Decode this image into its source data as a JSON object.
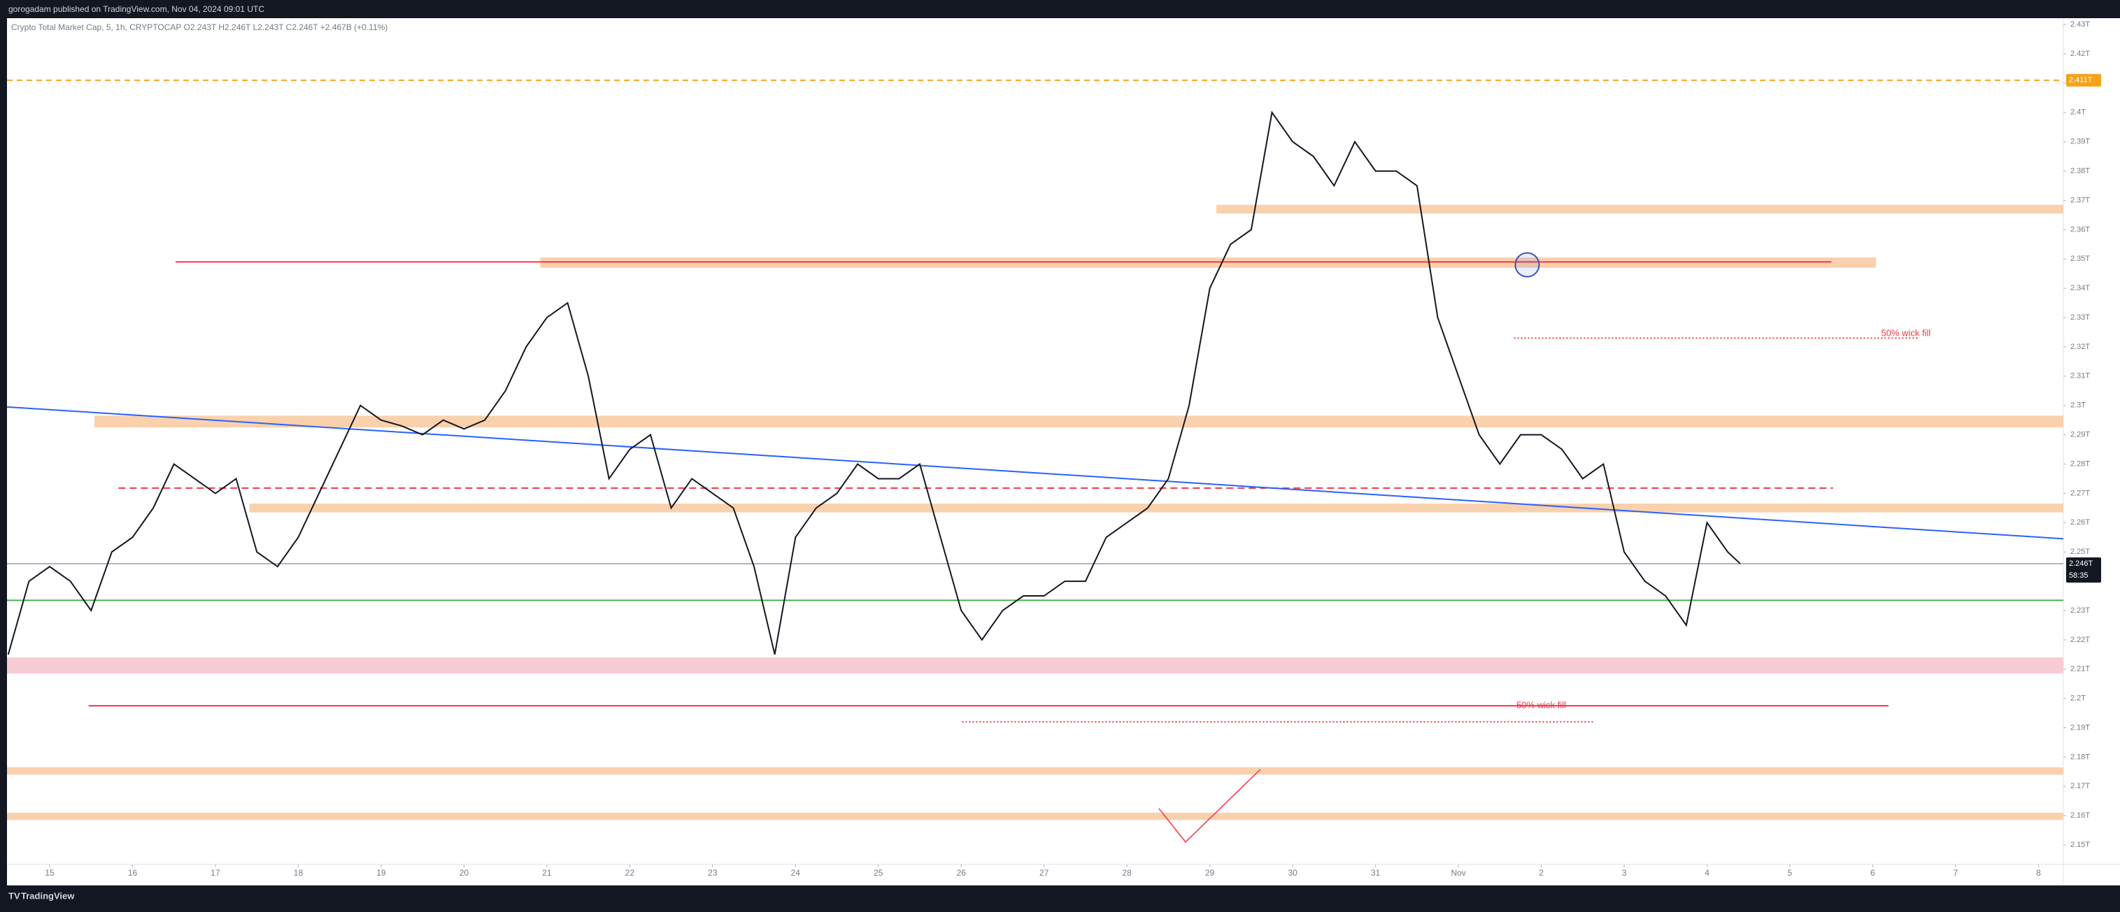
{
  "chart_data": {
    "type": "line",
    "publisher": "gorogadam published on TradingView.com, Nov 04, 2024 09:01 UTC",
    "legend_text": "Crypto Total Market Cap, 5, 1h, CRYPTOCAP  O2.243T  H2.246T  L2.243T  C2.246T  +2.467B (+0.11%)",
    "footer": "TradingView",
    "xlim": [
      14.485,
      39.3
    ],
    "ylim": [
      2.1443,
      2.4317
    ],
    "xticks": [
      15,
      16,
      17,
      18,
      19,
      20,
      21,
      22,
      23,
      24,
      25,
      26,
      27,
      28,
      29,
      30,
      31,
      {
        "value": 32,
        "label": "Nov"
      },
      {
        "value": 33,
        "label": "2"
      },
      {
        "value": 34,
        "label": "3"
      },
      {
        "value": 35,
        "label": "4"
      },
      {
        "value": 36,
        "label": "5"
      },
      {
        "value": 37,
        "label": "6"
      },
      {
        "value": 38,
        "label": "7"
      },
      {
        "value": 39,
        "label": "8"
      }
    ],
    "yticks": [
      {
        "value": 2.15,
        "label": "2.15T"
      },
      {
        "value": 2.16,
        "label": "2.16T"
      },
      {
        "value": 2.17,
        "label": "2.17T"
      },
      {
        "value": 2.18,
        "label": "2.18T"
      },
      {
        "value": 2.19,
        "label": "2.19T"
      },
      {
        "value": 2.2,
        "label": "2.2T"
      },
      {
        "value": 2.21,
        "label": "2.21T"
      },
      {
        "value": 2.22,
        "label": "2.22T"
      },
      {
        "value": 2.23,
        "label": "2.23T"
      },
      {
        "value": 2.25,
        "label": "2.25T"
      },
      {
        "value": 2.26,
        "label": "2.26T"
      },
      {
        "value": 2.27,
        "label": "2.27T"
      },
      {
        "value": 2.28,
        "label": "2.28T"
      },
      {
        "value": 2.29,
        "label": "2.29T"
      },
      {
        "value": 2.3,
        "label": "2.3T"
      },
      {
        "value": 2.31,
        "label": "2.31T"
      },
      {
        "value": 2.32,
        "label": "2.32T"
      },
      {
        "value": 2.33,
        "label": "2.33T"
      },
      {
        "value": 2.34,
        "label": "2.34T"
      },
      {
        "value": 2.35,
        "label": "2.35T"
      },
      {
        "value": 2.36,
        "label": "2.36T"
      },
      {
        "value": 2.37,
        "label": "2.37T"
      },
      {
        "value": 2.38,
        "label": "2.38T"
      },
      {
        "value": 2.39,
        "label": "2.39T"
      },
      {
        "value": 2.4,
        "label": "2.4T"
      },
      {
        "value": 2.41,
        "label": "2.41T"
      },
      {
        "value": 2.42,
        "label": "2.42T"
      },
      {
        "value": 2.43,
        "label": "2.43T"
      }
    ],
    "series": [
      {
        "color": "#131722",
        "x": [
          14.5,
          14.75,
          15,
          15.25,
          15.5,
          15.75,
          16,
          16.25,
          16.5,
          16.75,
          17,
          17.25,
          17.5,
          17.75,
          18,
          18.25,
          18.5,
          18.75,
          19,
          19.25,
          19.5,
          19.75,
          20,
          20.25,
          20.5,
          20.75,
          21,
          21.25,
          21.5,
          21.75,
          22,
          22.25,
          22.5,
          22.75,
          23,
          23.25,
          23.5,
          23.75,
          24,
          24.25,
          24.5,
          24.75,
          25,
          25.25,
          25.5,
          25.75,
          26,
          26.25,
          26.5,
          26.75,
          27,
          27.25,
          27.5,
          27.75,
          28,
          28.25,
          28.5,
          28.75,
          29,
          29.25,
          29.5,
          29.75,
          30,
          30.25,
          30.5,
          30.75,
          31,
          31.25,
          31.5,
          31.75,
          32,
          32.25,
          32.5,
          32.75,
          33,
          33.25,
          33.5,
          33.75,
          34,
          34.25,
          34.5,
          34.75,
          35,
          35.25,
          35.4
        ],
        "values": [
          2.215,
          2.24,
          2.245,
          2.24,
          2.23,
          2.25,
          2.255,
          2.265,
          2.28,
          2.275,
          2.27,
          2.275,
          2.25,
          2.245,
          2.255,
          2.27,
          2.285,
          2.3,
          2.295,
          2.293,
          2.29,
          2.295,
          2.292,
          2.295,
          2.305,
          2.32,
          2.33,
          2.335,
          2.31,
          2.275,
          2.285,
          2.29,
          2.265,
          2.275,
          2.27,
          2.265,
          2.245,
          2.215,
          2.255,
          2.265,
          2.27,
          2.28,
          2.275,
          2.275,
          2.28,
          2.255,
          2.23,
          2.22,
          2.23,
          2.235,
          2.235,
          2.24,
          2.24,
          2.255,
          2.26,
          2.265,
          2.275,
          2.3,
          2.34,
          2.355,
          2.36,
          2.4,
          2.39,
          2.385,
          2.375,
          2.39,
          2.38,
          2.38,
          2.375,
          2.33,
          2.31,
          2.29,
          2.28,
          2.29,
          2.29,
          2.285,
          2.275,
          2.28,
          2.25,
          2.24,
          2.235,
          2.225,
          2.26,
          2.25,
          2.246
        ]
      }
    ],
    "zones": [
      {
        "low": 2.3655,
        "high": 2.3685,
        "x": [
          29.08,
          39.3
        ],
        "color": "#f9d1ad"
      },
      {
        "low": 2.347,
        "high": 2.3505,
        "x": [
          20.92,
          37.04
        ],
        "color": "#f9d1ad"
      },
      {
        "low": 2.2925,
        "high": 2.2965,
        "x": [
          15.54,
          39.3
        ],
        "color": "#f9d1ad"
      },
      {
        "low": 2.2635,
        "high": 2.2665,
        "x": [
          17.41,
          39.3
        ],
        "color": "#f9d1ad"
      },
      {
        "low": 2.2085,
        "high": 2.214,
        "x": [
          14.485,
          39.3
        ],
        "color": "#f8ccd3"
      },
      {
        "low": 2.174,
        "high": 2.1765,
        "x": [
          14.485,
          39.3
        ],
        "color": "#f9d1ad"
      },
      {
        "low": 2.1585,
        "high": 2.161,
        "x": [
          14.485,
          39.3
        ],
        "color": "#f9d1ad"
      }
    ],
    "lines": [
      {
        "x": [
          14.485,
          39.3
        ],
        "y": [
          2.411,
          2.411
        ],
        "color": "#f7a21b",
        "dash": "8,6"
      },
      {
        "x": [
          16.52,
          36.5
        ],
        "y": [
          2.349,
          2.349
        ],
        "color": "#f23645",
        "dash": ""
      },
      {
        "x": [
          15.83,
          36.52
        ],
        "y": [
          2.2718,
          2.2718
        ],
        "color": "#f23645",
        "dash": "10,6"
      },
      {
        "x": [
          14.485,
          39.3
        ],
        "y": [
          2.246,
          2.246
        ],
        "color": "#b2b5be",
        "dash": ""
      },
      {
        "x": [
          14.485,
          39.3
        ],
        "y": [
          2.2335,
          2.2335
        ],
        "color": "#4caf50",
        "dash": ""
      },
      {
        "x": [
          15.47,
          37.19
        ],
        "y": [
          2.1975,
          2.1975
        ],
        "color": "#f23645",
        "dash": ""
      },
      {
        "x": [
          32.67,
          37.56
        ],
        "y": [
          2.323,
          2.323
        ],
        "color": "#f23645",
        "dash": "2,3"
      },
      {
        "x": [
          26.01,
          33.65
        ],
        "y": [
          2.192,
          2.192
        ],
        "color": "#f23645",
        "dash": "2,3"
      },
      {
        "x": [
          14.485,
          39.3
        ],
        "y": [
          2.2995,
          2.2545
        ],
        "color": "#2962ff",
        "dash": ""
      }
    ],
    "annotations": [
      {
        "text": "50% wick fill",
        "x": 37.4,
        "y": 2.3245
      },
      {
        "text": "50% wick fill",
        "x": 33.0,
        "y": 2.1975
      }
    ],
    "circle": {
      "x": 32.83,
      "y": 2.348
    },
    "axis_labels": [
      {
        "value": 2.411,
        "label": "2.411T",
        "color": "#f7a21b"
      },
      {
        "value": 2.246,
        "label": "2.246T",
        "sub": "58:35",
        "color": "#131722"
      }
    ]
  }
}
